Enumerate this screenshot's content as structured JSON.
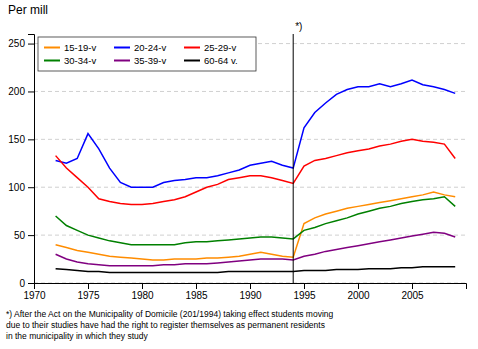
{
  "chart_data": {
    "type": "line",
    "title": "Per mill",
    "footnote": "*) After the Act on the Municipality of Domicile (201/1994) taking effect students moving\ndue to their studies have had the right to register themselves as permanent residents\nin the municipality in which they study",
    "annotations": [
      {
        "x": 1994,
        "text": "*)"
      }
    ],
    "x": [
      1972,
      1973,
      1974,
      1975,
      1976,
      1977,
      1978,
      1979,
      1980,
      1981,
      1982,
      1983,
      1984,
      1985,
      1986,
      1987,
      1988,
      1989,
      1990,
      1991,
      1992,
      1993,
      1994,
      1995,
      1996,
      1997,
      1998,
      1999,
      2000,
      2001,
      2002,
      2003,
      2004,
      2005,
      2006,
      2007,
      2008,
      2009
    ],
    "series": [
      {
        "name": "15-19-v",
        "color": "#FF8C00",
        "values": [
          40,
          37,
          34,
          32,
          30,
          28,
          27,
          26,
          25,
          24,
          24,
          25,
          25,
          25,
          26,
          26,
          27,
          28,
          30,
          32,
          30,
          28,
          27,
          62,
          68,
          72,
          75,
          78,
          80,
          82,
          84,
          86,
          88,
          90,
          92,
          95,
          92,
          90
        ]
      },
      {
        "name": "20-24-v",
        "color": "#0000FF",
        "values": [
          128,
          125,
          130,
          156,
          140,
          120,
          105,
          100,
          100,
          100,
          105,
          107,
          108,
          110,
          110,
          112,
          115,
          118,
          123,
          125,
          127,
          123,
          120,
          162,
          178,
          188,
          197,
          202,
          205,
          205,
          208,
          205,
          208,
          212,
          207,
          205,
          202,
          198
        ]
      },
      {
        "name": "25-29-v",
        "color": "#FF0000",
        "values": [
          133,
          120,
          110,
          100,
          88,
          85,
          83,
          82,
          82,
          83,
          85,
          87,
          90,
          95,
          100,
          103,
          108,
          110,
          112,
          112,
          110,
          107,
          104,
          122,
          128,
          130,
          133,
          136,
          138,
          140,
          143,
          145,
          148,
          150,
          148,
          147,
          145,
          130
        ]
      },
      {
        "name": "30-34-v",
        "color": "#008000",
        "values": [
          70,
          60,
          55,
          50,
          47,
          44,
          42,
          40,
          40,
          40,
          40,
          40,
          42,
          43,
          43,
          44,
          45,
          46,
          47,
          48,
          48,
          47,
          46,
          55,
          58,
          62,
          65,
          68,
          72,
          75,
          78,
          80,
          83,
          85,
          87,
          88,
          90,
          80
        ]
      },
      {
        "name": "35-39-v",
        "color": "#800080",
        "values": [
          30,
          25,
          22,
          20,
          19,
          18,
          18,
          18,
          18,
          18,
          19,
          19,
          20,
          20,
          20,
          21,
          22,
          23,
          24,
          25,
          25,
          25,
          24,
          28,
          30,
          33,
          35,
          37,
          39,
          41,
          43,
          45,
          47,
          49,
          51,
          53,
          52,
          48
        ]
      },
      {
        "name": "60-64 v.",
        "color": "#000000",
        "values": [
          15,
          14,
          13,
          12,
          12,
          11,
          11,
          11,
          11,
          11,
          11,
          11,
          11,
          11,
          11,
          11,
          12,
          12,
          12,
          12,
          12,
          12,
          12,
          13,
          13,
          13,
          14,
          14,
          14,
          15,
          15,
          15,
          16,
          16,
          17,
          17,
          17,
          17
        ]
      }
    ],
    "xlim": [
      1970,
      2010
    ],
    "ylim": [
      0,
      260
    ],
    "xticks": [
      1970,
      1975,
      1980,
      1985,
      1990,
      1995,
      2000,
      2005
    ],
    "yticks": [
      0,
      50,
      100,
      150,
      200,
      250
    ],
    "grid": true,
    "legend": "upper left"
  }
}
